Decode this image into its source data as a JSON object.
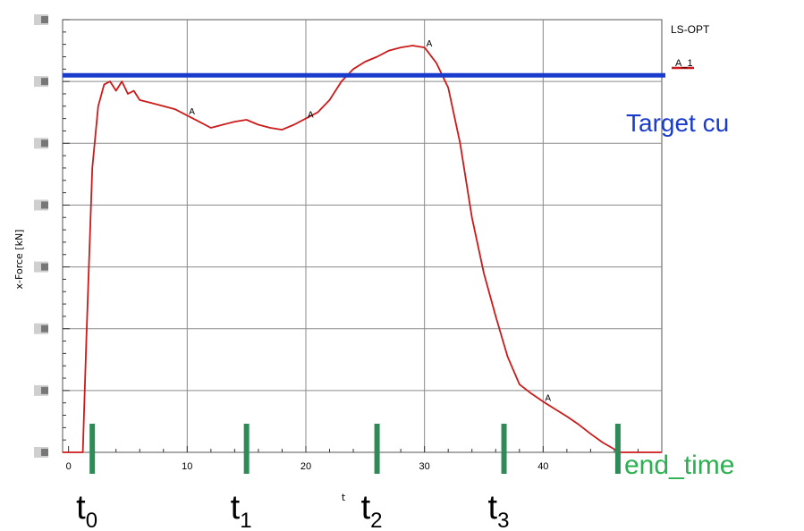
{
  "chart_data": {
    "type": "line",
    "xlabel": "t",
    "ylabel": "x-Force [kN]",
    "xlim": [
      -0.5,
      50
    ],
    "ylim": [
      0,
      7
    ],
    "x_ticks": [
      0,
      10,
      20,
      30,
      40
    ],
    "legend": {
      "title": "LS-OPT",
      "entries": [
        "A_1"
      ],
      "placement": "top-right"
    },
    "series": [
      {
        "name": "A_1",
        "color": "#cc1a1a",
        "x": [
          -0.5,
          1.2,
          1.5,
          2.0,
          2.5,
          3.0,
          3.5,
          4.0,
          4.5,
          5.0,
          5.5,
          6.0,
          7.0,
          8.0,
          9.0,
          10.0,
          11.0,
          12.0,
          13.0,
          14.0,
          15.0,
          16.0,
          17.0,
          18.0,
          19.0,
          20.0,
          21.0,
          22.0,
          23.0,
          24.0,
          25.0,
          26.0,
          27.0,
          28.0,
          29.0,
          30.0,
          31.0,
          32.0,
          33.0,
          34.0,
          35.0,
          36.0,
          37.0,
          38.0,
          39.0,
          40.0,
          41.0,
          42.0,
          43.0,
          44.0,
          45.0,
          46.0,
          46.5,
          50.0
        ],
        "y": [
          0,
          0,
          1.8,
          4.6,
          5.6,
          5.95,
          6.0,
          5.85,
          6.0,
          5.8,
          5.85,
          5.7,
          5.65,
          5.6,
          5.55,
          5.45,
          5.35,
          5.25,
          5.3,
          5.35,
          5.38,
          5.3,
          5.25,
          5.22,
          5.3,
          5.4,
          5.5,
          5.7,
          6.0,
          6.2,
          6.32,
          6.4,
          6.5,
          6.55,
          6.58,
          6.55,
          6.3,
          5.9,
          5.0,
          3.8,
          2.9,
          2.2,
          1.55,
          1.1,
          0.95,
          0.82,
          0.7,
          0.58,
          0.45,
          0.3,
          0.16,
          0.05,
          0,
          0
        ]
      }
    ],
    "point_markers": [
      {
        "label": "A",
        "x": 10,
        "y": 5.45
      },
      {
        "label": "A",
        "x": 20,
        "y": 5.4
      },
      {
        "label": "A",
        "x": 30,
        "y": 6.55
      },
      {
        "label": "A",
        "x": 40,
        "y": 0.82
      }
    ],
    "target_line": {
      "y": 6.1,
      "color": "#1a3ccc",
      "label": "Target cu"
    },
    "time_markers": [
      {
        "x": 2.0,
        "label": "t",
        "sub": "0"
      },
      {
        "x": 15.0,
        "label": "t",
        "sub": "1"
      },
      {
        "x": 26.0,
        "label": "t",
        "sub": "2"
      },
      {
        "x": 36.7,
        "label": "t",
        "sub": "3"
      },
      {
        "x": 46.3,
        "label": "end_time",
        "sub": ""
      }
    ],
    "time_marker_color": "#2e8b57",
    "end_time_color": "#2ab050",
    "grid": true
  }
}
